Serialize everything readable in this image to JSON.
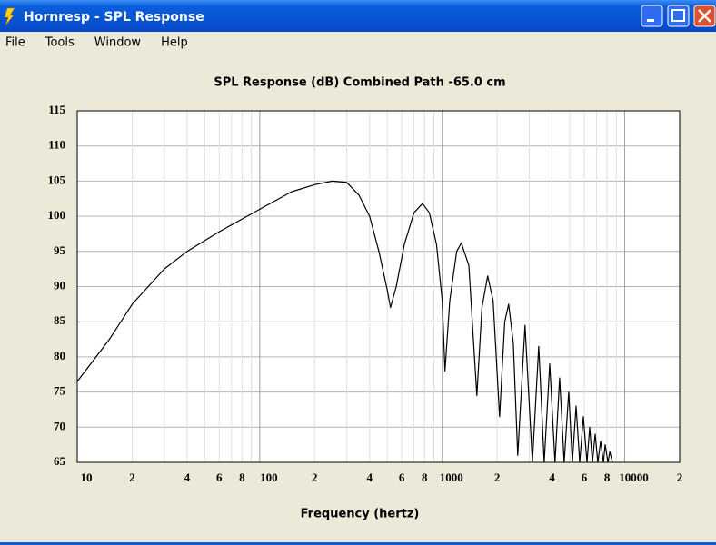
{
  "window": {
    "title": "Hornresp - SPL Response",
    "menu": [
      "File",
      "Tools",
      "Window",
      "Help"
    ]
  },
  "chart_data": {
    "type": "line",
    "title": "SPL Response (dB)   Combined   Path -65.0 cm",
    "xlabel": "Frequency (hertz)",
    "xscale": "log",
    "color": "#000000",
    "grid": true,
    "xlim": [
      10,
      20000
    ],
    "ylim": [
      65,
      115
    ],
    "yticks": [
      65,
      70,
      75,
      80,
      85,
      90,
      95,
      100,
      105,
      110,
      115
    ],
    "xticks": [
      10,
      {
        "value": 20,
        "label": "2"
      },
      {
        "value": 40,
        "label": "4"
      },
      {
        "value": 60,
        "label": "6"
      },
      {
        "value": 80,
        "label": "8"
      },
      100,
      {
        "value": 200,
        "label": "2"
      },
      {
        "value": 400,
        "label": "4"
      },
      {
        "value": 600,
        "label": "6"
      },
      {
        "value": 800,
        "label": "8"
      },
      1000,
      {
        "value": 2000,
        "label": "2"
      },
      {
        "value": 4000,
        "label": "4"
      },
      {
        "value": 6000,
        "label": "6"
      },
      {
        "value": 8000,
        "label": "8"
      },
      10000,
      {
        "value": 20000,
        "label": "2"
      }
    ],
    "xminorticks": [
      30,
      50,
      70,
      90,
      300,
      500,
      700,
      900,
      3000,
      5000,
      7000,
      9000
    ],
    "x": [
      10,
      15,
      20,
      30,
      40,
      60,
      100,
      150,
      200,
      250,
      300,
      350,
      400,
      450,
      500,
      520,
      560,
      620,
      700,
      780,
      850,
      930,
      1000,
      1035,
      1100,
      1200,
      1273,
      1400,
      1547,
      1650,
      1775,
      1900,
      2062,
      2200,
      2312,
      2450,
      2594,
      2843,
      3117,
      3378,
      3620,
      3880,
      4150,
      4400,
      4660,
      4935,
      5165,
      5410,
      5665,
      5930,
      6210,
      6430,
      6655,
      6890,
      7130,
      7380,
      7640,
      7815,
      8090,
      8280,
      8570
    ],
    "values": [
      76.5,
      82.5,
      87.5,
      92.5,
      95,
      97.8,
      101,
      103.5,
      104.5,
      105,
      104.8,
      103,
      100,
      95,
      89.5,
      87,
      90,
      96,
      100.5,
      101.8,
      100.5,
      96,
      88,
      78,
      88,
      95,
      96.2,
      93,
      74.5,
      87,
      91.5,
      88,
      71.5,
      85,
      87.5,
      82,
      66,
      84.5,
      65,
      81.5,
      65,
      79,
      65,
      77,
      65,
      75,
      65,
      73,
      65,
      71.5,
      65,
      70,
      65,
      69,
      65,
      68,
      65,
      67.5,
      65,
      66.5,
      65
    ]
  }
}
